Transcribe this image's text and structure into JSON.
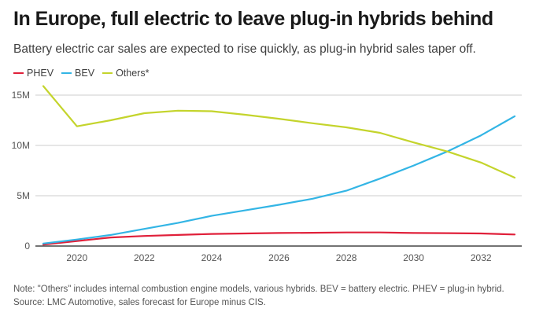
{
  "header": {
    "title": "In Europe, full electric to leave plug-in hybrids behind",
    "subtitle": "Battery electric car sales are expected to rise quickly, as plug-in hybrid sales taper off."
  },
  "footer": {
    "note": "Note: \"Others\" includes internal combustion engine models, various hybrids. BEV = battery electric. PHEV = plug-in hybrid.",
    "source": "Source: LMC Automotive, sales forecast for Europe minus CIS."
  },
  "chart_data": {
    "type": "line",
    "title": "In Europe, full electric to leave plug-in hybrids behind",
    "xlabel": "",
    "ylabel": "",
    "x": [
      2019,
      2020,
      2021,
      2022,
      2023,
      2024,
      2025,
      2026,
      2027,
      2028,
      2029,
      2030,
      2031,
      2032,
      2033
    ],
    "xlim": [
      2019,
      2033
    ],
    "ylim": [
      0,
      15
    ],
    "yticks": [
      0,
      5,
      10,
      15
    ],
    "ytick_labels": [
      "0",
      "5M",
      "10M",
      "15M"
    ],
    "xticks": [
      2020,
      2022,
      2024,
      2026,
      2028,
      2030,
      2032
    ],
    "xtick_labels": [
      "2020",
      "2022",
      "2024",
      "2026",
      "2028",
      "2030",
      "2032"
    ],
    "grid": true,
    "legend_position": "top-left",
    "units": "million vehicles",
    "series": [
      {
        "name": "PHEV",
        "color": "#e0203a",
        "values": [
          0.15,
          0.5,
          0.85,
          1.0,
          1.1,
          1.2,
          1.25,
          1.3,
          1.32,
          1.35,
          1.35,
          1.3,
          1.28,
          1.25,
          1.15
        ]
      },
      {
        "name": "BEV",
        "color": "#33b5e5",
        "values": [
          0.25,
          0.65,
          1.1,
          1.7,
          2.3,
          3.0,
          3.55,
          4.1,
          4.7,
          5.5,
          6.7,
          8.0,
          9.4,
          11.0,
          12.9
        ]
      },
      {
        "name": "Others*",
        "color": "#c4d42c",
        "values": [
          15.9,
          11.9,
          12.5,
          13.2,
          13.45,
          13.4,
          13.05,
          12.65,
          12.2,
          11.8,
          11.25,
          10.3,
          9.4,
          8.3,
          6.8
        ]
      }
    ]
  }
}
